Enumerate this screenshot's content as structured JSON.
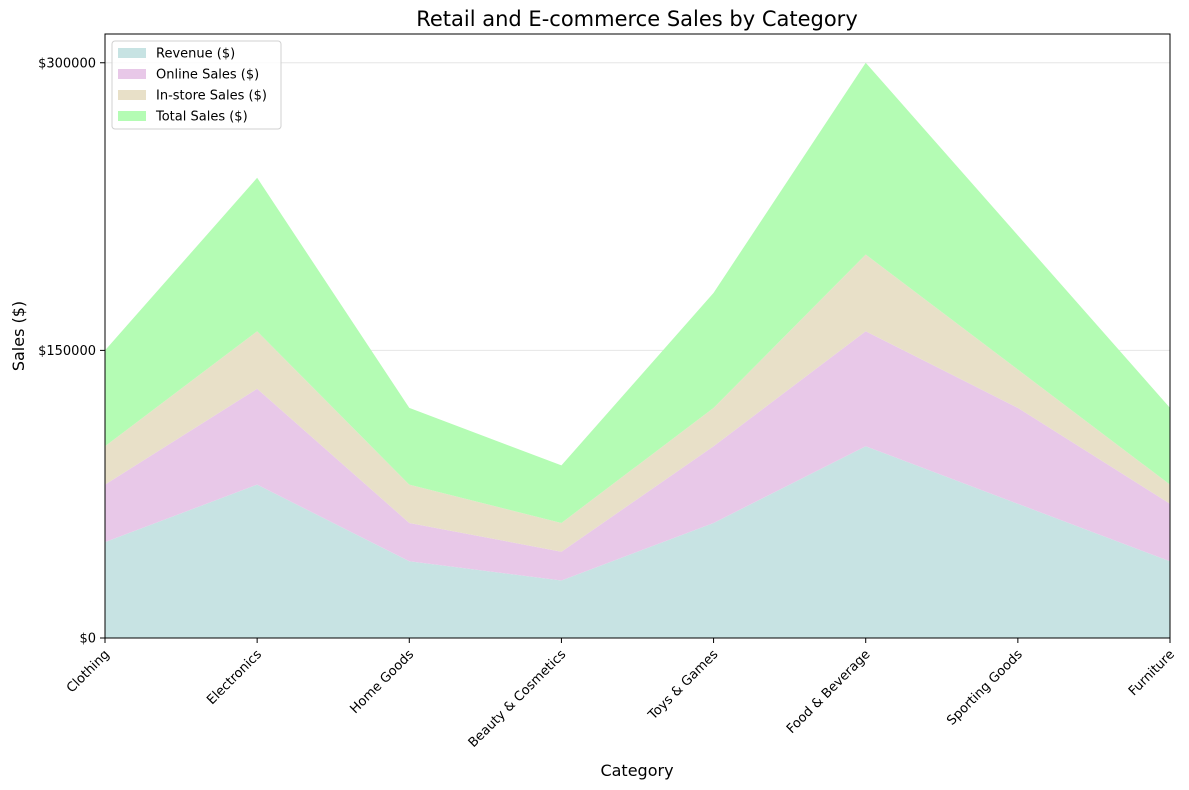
{
  "chart_data": {
    "type": "area",
    "stacked": true,
    "title": "Retail and E-commerce Sales by Category",
    "xlabel": "Category",
    "ylabel": "Sales ($)",
    "ylim": [
      0,
      315000
    ],
    "yticks": [
      0,
      150000,
      300000
    ],
    "ytick_labels": [
      "$0",
      "$150000",
      "$300000"
    ],
    "grid": "horizontal",
    "legend_position": "top-left",
    "categories": [
      "Clothing",
      "Electronics",
      "Home Goods",
      "Beauty & Cosmetics",
      "Toys & Games",
      "Food & Beverage",
      "Sporting Goods",
      "Furniture"
    ],
    "series": [
      {
        "name": "Revenue ($)",
        "color": "#c7e3e3",
        "values": [
          50000,
          80000,
          40000,
          30000,
          60000,
          100000,
          70000,
          40000
        ]
      },
      {
        "name": "Online Sales ($)",
        "color": "#e8c8e8",
        "values": [
          30000,
          50000,
          20000,
          15000,
          40000,
          60000,
          50000,
          30000
        ]
      },
      {
        "name": "In-store Sales ($)",
        "color": "#e8e0c8",
        "values": [
          20000,
          30000,
          20000,
          15000,
          20000,
          40000,
          20000,
          10000
        ]
      },
      {
        "name": "Total Sales ($)",
        "color": "#b4fcb4",
        "values": [
          50000,
          80000,
          40000,
          30000,
          60000,
          100000,
          70000,
          40000
        ]
      }
    ]
  }
}
